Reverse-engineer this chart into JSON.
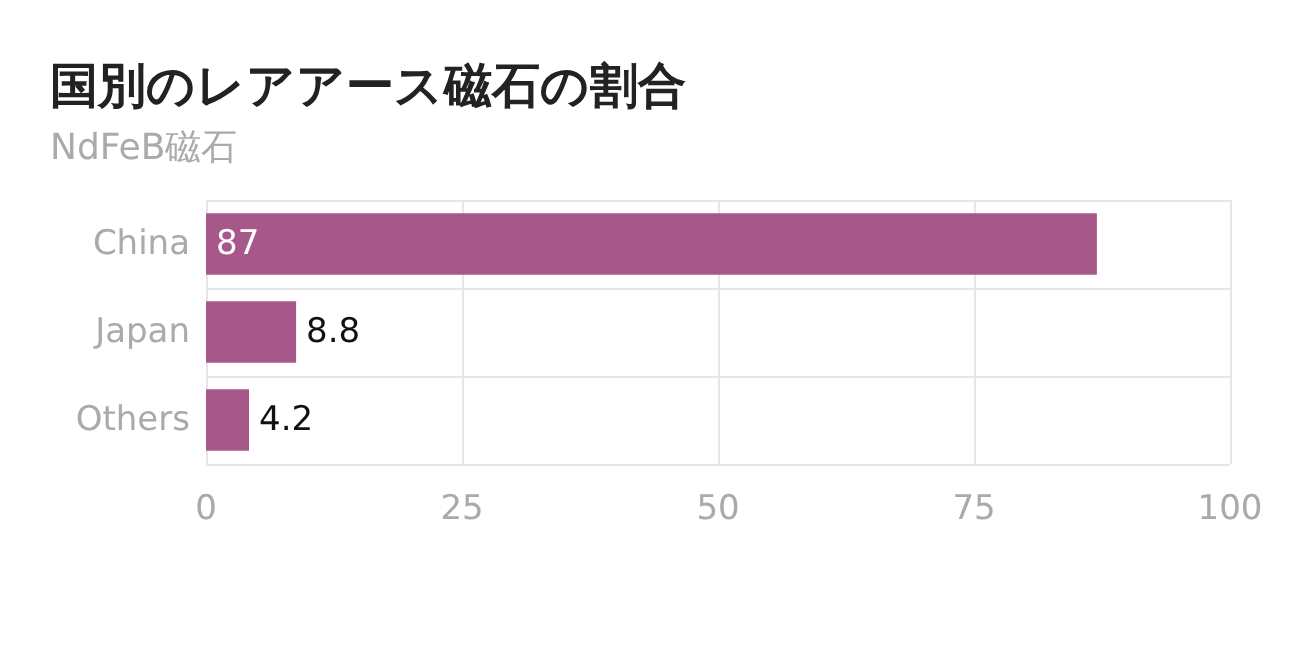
{
  "chart_data": {
    "type": "bar",
    "orientation": "horizontal",
    "title": "国別のレアアース磁石の割合",
    "subtitle": "NdFeB磁石",
    "categories": [
      "China",
      "Japan",
      "Others"
    ],
    "values": [
      87,
      8.8,
      4.2
    ],
    "color": "#a8578a",
    "xlim": [
      0,
      100
    ],
    "xticks": [
      0,
      25,
      50,
      75,
      100
    ],
    "grid": true,
    "data_labels": true
  }
}
